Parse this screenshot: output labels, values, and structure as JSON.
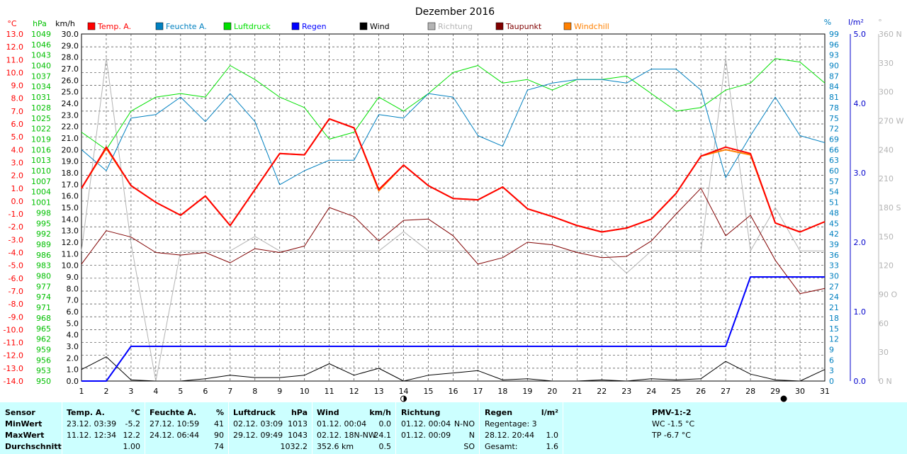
{
  "chart_data": {
    "type": "line",
    "title": "Dezember 2016",
    "x": [
      1,
      2,
      3,
      4,
      5,
      6,
      7,
      8,
      9,
      10,
      11,
      12,
      13,
      14,
      15,
      16,
      17,
      18,
      19,
      20,
      21,
      22,
      23,
      24,
      25,
      26,
      27,
      28,
      29,
      30,
      31
    ],
    "x_ticks": [
      "1",
      "2",
      "3",
      "4",
      "5",
      "6",
      "7",
      "8",
      "9",
      "10",
      "11",
      "12",
      "13",
      "14",
      "15",
      "16",
      "17",
      "18",
      "19",
      "20",
      "21",
      "22",
      "23",
      "24",
      "25",
      "26",
      "27",
      "28",
      "29",
      "30",
      "31"
    ],
    "grid": true,
    "legend_position": "top",
    "axes": {
      "temp": {
        "unit": "°C",
        "min": -14.0,
        "max": 13.0,
        "ticks": [
          "13.0",
          "12.0",
          "11.0",
          "10.0",
          "9.0",
          "8.0",
          "7.0",
          "6.0",
          "5.0",
          "4.0",
          "3.0",
          "2.0",
          "1.0",
          "0.0",
          "-1.0",
          "-2.0",
          "-3.0",
          "-4.0",
          "-5.0",
          "-6.0",
          "-7.0",
          "-8.0",
          "-9.0",
          "-10.0",
          "-11.0",
          "-12.0",
          "-13.0",
          "-14.0"
        ]
      },
      "press": {
        "unit": "hPa",
        "min": 950,
        "max": 1049,
        "ticks": [
          "1049",
          "1046",
          "1043",
          "1040",
          "1037",
          "1034",
          "1031",
          "1028",
          "1025",
          "1022",
          "1019",
          "1016",
          "1013",
          "1010",
          "1007",
          "1004",
          "1001",
          "998",
          "995",
          "992",
          "989",
          "986",
          "983",
          "980",
          "977",
          "974",
          "971",
          "968",
          "965",
          "962",
          "959",
          "956",
          "953",
          "950"
        ]
      },
      "wind": {
        "unit": "km/h",
        "min": 0.0,
        "max": 30.0,
        "ticks": [
          "30.0",
          "29.0",
          "28.0",
          "27.0",
          "26.0",
          "25.0",
          "24.0",
          "23.0",
          "22.0",
          "21.0",
          "20.0",
          "19.0",
          "18.0",
          "17.0",
          "16.0",
          "15.0",
          "14.0",
          "13.0",
          "12.0",
          "11.0",
          "10.0",
          "9.0",
          "8.0",
          "7.0",
          "6.0",
          "5.0",
          "4.0",
          "3.0",
          "2.0",
          "1.0",
          "0.0"
        ]
      },
      "hum": {
        "unit": "%",
        "min": 0,
        "max": 99,
        "ticks": [
          "99",
          "96",
          "93",
          "90",
          "87",
          "84",
          "81",
          "78",
          "75",
          "72",
          "69",
          "66",
          "63",
          "60",
          "57",
          "54",
          "51",
          "48",
          "45",
          "42",
          "39",
          "36",
          "33",
          "30",
          "27",
          "24",
          "21",
          "18",
          "15",
          "12",
          "9",
          "6",
          "3",
          "0"
        ]
      },
      "rain": {
        "unit": "l/m²",
        "min": 0.0,
        "max": 5.0,
        "ticks": [
          "5.0",
          "4.0",
          "3.0",
          "2.0",
          "1.0",
          "0.0"
        ]
      },
      "dir": {
        "unit": "°",
        "min": 0,
        "max": 360,
        "ticks": [
          "360 N",
          "330",
          "300",
          "270 W",
          "240",
          "210",
          "180 S",
          "150",
          "120",
          "90 O",
          "60",
          "30",
          "0 N"
        ]
      }
    },
    "series": [
      {
        "name": "Temp. A.",
        "axis": "temp",
        "color": "#ff0000",
        "width": 2,
        "values": [
          1.0,
          4.2,
          1.2,
          -0.1,
          -1.1,
          0.4,
          -1.9,
          0.9,
          3.7,
          3.6,
          6.4,
          5.7,
          0.9,
          2.8,
          1.2,
          0.2,
          0.1,
          1.1,
          -0.6,
          -1.2,
          -1.9,
          -2.4,
          -2.1,
          -1.4,
          0.6,
          3.5,
          4.2,
          3.7,
          -1.7,
          -2.4,
          -1.6
        ]
      },
      {
        "name": "Windchill",
        "axis": "temp",
        "color": "#ff8000",
        "width": 2,
        "values": [
          1.0,
          4.1,
          1.2,
          -0.1,
          -1.1,
          0.4,
          -1.9,
          0.9,
          3.7,
          3.6,
          6.4,
          5.7,
          0.8,
          2.8,
          1.2,
          0.2,
          0.1,
          1.1,
          -0.6,
          -1.2,
          -1.9,
          -2.4,
          -2.1,
          -1.4,
          0.6,
          3.5,
          4.0,
          3.6,
          -1.7,
          -2.4,
          -1.6
        ]
      },
      {
        "name": "Taupunkt",
        "axis": "temp",
        "color": "#800000",
        "width": 1,
        "values": [
          -4.9,
          -2.3,
          -2.8,
          -4.0,
          -4.2,
          -4.0,
          -4.8,
          -3.7,
          -4.0,
          -3.5,
          -0.5,
          -1.2,
          -3.1,
          -1.5,
          -1.4,
          -2.7,
          -4.9,
          -4.4,
          -3.2,
          -3.4,
          -4.0,
          -4.4,
          -4.3,
          -3.1,
          -1.0,
          1.0,
          -2.7,
          -1.1,
          -4.6,
          -7.2,
          -6.8
        ]
      },
      {
        "name": "Feuchte A.",
        "axis": "hum",
        "color": "#0080c0",
        "width": 1,
        "values": [
          66,
          60,
          75,
          76,
          81,
          74,
          82,
          74,
          56,
          60,
          63,
          63,
          76,
          75,
          82,
          81,
          70,
          67,
          83,
          85,
          86,
          86,
          85,
          89,
          89,
          83,
          58,
          70,
          81,
          70,
          68
        ]
      },
      {
        "name": "Luftdruck",
        "axis": "press",
        "color": "#00e000",
        "width": 1,
        "values": [
          1021,
          1016,
          1027,
          1031,
          1032,
          1031,
          1040,
          1036,
          1031,
          1028,
          1019,
          1021,
          1031,
          1027,
          1032,
          1038,
          1040,
          1035,
          1036,
          1033,
          1036,
          1036,
          1037,
          1032,
          1027,
          1028,
          1033,
          1035,
          1042,
          1041,
          1035
        ]
      },
      {
        "name": "Richtung",
        "axis": "dir",
        "color": "#b4b4b4",
        "width": 1,
        "values": [
          135,
          335,
          143,
          0,
          135,
          135,
          135,
          150,
          135,
          135,
          135,
          135,
          135,
          155,
          135,
          135,
          135,
          135,
          135,
          135,
          135,
          135,
          112,
          135,
          135,
          135,
          335,
          135,
          180,
          135,
          135
        ]
      },
      {
        "name": "Regen",
        "axis": "rain",
        "color": "#0000ff",
        "width": 2,
        "values": [
          0.0,
          0.0,
          0.5,
          0.5,
          0.5,
          0.5,
          0.5,
          0.5,
          0.5,
          0.5,
          0.5,
          0.5,
          0.5,
          0.5,
          0.5,
          0.5,
          0.5,
          0.5,
          0.5,
          0.5,
          0.5,
          0.5,
          0.5,
          0.5,
          0.5,
          0.5,
          0.5,
          1.5,
          1.5,
          1.5,
          1.5
        ]
      },
      {
        "name": "Wind",
        "axis": "wind",
        "color": "#000000",
        "width": 1,
        "values": [
          1.0,
          2.1,
          0.1,
          0.0,
          0.0,
          0.2,
          0.5,
          0.3,
          0.3,
          0.5,
          1.5,
          0.5,
          1.1,
          0.0,
          0.5,
          0.7,
          0.9,
          0.1,
          0.2,
          0.0,
          0.0,
          0.1,
          0.0,
          0.2,
          0.1,
          0.2,
          1.7,
          0.6,
          0.1,
          0.0,
          1.0
        ]
      }
    ],
    "legend_order": [
      "Temp. A.",
      "Feuchte A.",
      "Luftdruck",
      "Regen",
      "Wind",
      "Richtung",
      "Taupunkt",
      "Windchill"
    ],
    "markers": {
      "first_quarter_day": 14,
      "full_moon_day": 29
    }
  },
  "stats": {
    "row_labels": [
      "Sensor",
      "MinWert",
      "MaxWert",
      "Durchschnitt"
    ],
    "temp": {
      "header": "Temp. A.",
      "unit": "°C",
      "min_time": "23.12.  03:39",
      "min": "-5.2",
      "max_time": "11.12.  12:34",
      "max": "12.2",
      "avg": "1.00"
    },
    "hum": {
      "header": "Feuchte A.",
      "unit": "%",
      "min_time": "27.12.  10:59",
      "min": "41",
      "max_time": "24.12.  06:44",
      "max": "90",
      "avg": "74"
    },
    "press": {
      "header": "Luftdruck",
      "unit": "hPa",
      "min_time": "02.12.  03:09",
      "min": "1013",
      "max_time": "29.12.  09:49",
      "max": "1043",
      "avg": "1032.2"
    },
    "wind": {
      "header": "Wind",
      "unit": "km/h",
      "min_time": "01.12.  00:04",
      "min": "0.0",
      "max_time": "02.12.  18N-NW",
      "max": "24.1",
      "avg_left": "352.6 km",
      "avg": "0.5"
    },
    "dir": {
      "header": "Richtung",
      "min_time": "01.12.  00:04",
      "min": "N-NO",
      "max_time": "01.12.  00:09",
      "max": "N",
      "avg": "SO"
    },
    "rain": {
      "header": "Regen",
      "unit": "l/m²",
      "line1": "Regentage: 3",
      "max_time": "28.12.  20:44",
      "max": "1.0",
      "avg_left": "Gesamt:",
      "avg": "1.6"
    },
    "pmv": {
      "header": "PMV-1:-2",
      "line1": "WC -1.5 °C",
      "line2": "TP -6.7 °C"
    }
  }
}
